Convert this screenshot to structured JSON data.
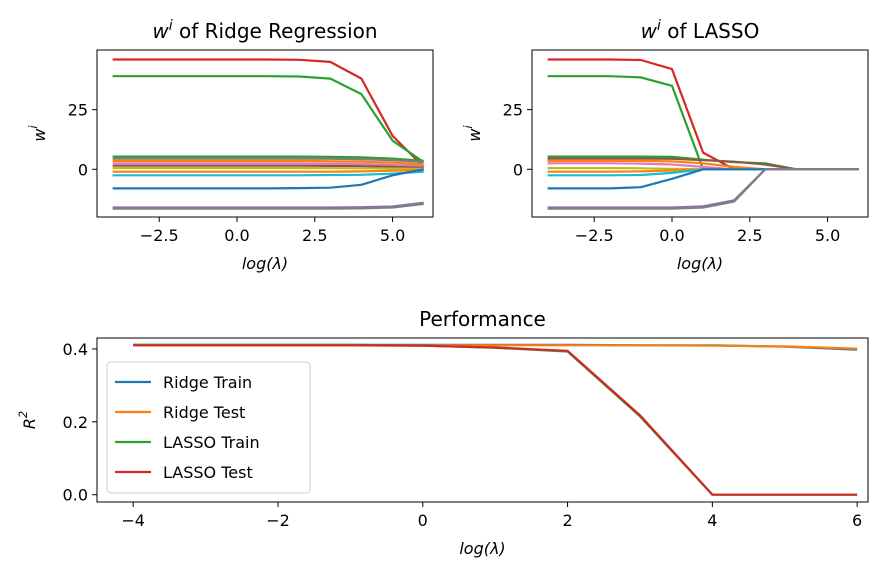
{
  "figure": {
    "colors": {
      "blue": "#1f77b4",
      "orange": "#ff7f0e",
      "green": "#2ca02c",
      "red": "#d62728",
      "purple": "#9467bd",
      "brown": "#8c564b",
      "pink": "#e377c2",
      "gray": "#7f7f7f",
      "olive": "#bcbd22",
      "cyan": "#17becf"
    }
  },
  "chart_data": [
    {
      "type": "line",
      "title": "w^i of Ridge Regression",
      "xlabel": "log(λ)",
      "ylabel": "w^i",
      "xlim": [
        -4.5,
        6.3
      ],
      "ylim": [
        -20,
        50
      ],
      "xticks": [
        -2.5,
        0.0,
        2.5,
        5.0
      ],
      "xtick_labels": [
        "−2.5",
        "0.0",
        "2.5",
        "5.0"
      ],
      "yticks": [
        0,
        25
      ],
      "ytick_labels": [
        "0",
        "25"
      ],
      "x": [
        -4,
        -3,
        -2,
        -1,
        0,
        1,
        2,
        3,
        4,
        5,
        6
      ],
      "series": [
        {
          "color": "#d62728",
          "values": [
            46,
            46,
            46,
            46,
            46,
            46,
            45.9,
            45,
            38,
            14,
            1
          ]
        },
        {
          "color": "#2ca02c",
          "values": [
            39,
            39,
            39,
            39,
            39,
            39,
            38.9,
            38,
            31.5,
            12,
            3
          ]
        },
        {
          "color": "#2ca02c",
          "values": [
            5.3,
            5.3,
            5.3,
            5.3,
            5.3,
            5.3,
            5.3,
            5.2,
            5.0,
            4.5,
            3.5
          ]
        },
        {
          "color": "#7f7f7f",
          "values": [
            4.5,
            4.5,
            4.5,
            4.5,
            4.5,
            4.5,
            4.5,
            4.4,
            4.2,
            3.8,
            3.0
          ]
        },
        {
          "color": "#ff7f0e",
          "values": [
            3.5,
            3.5,
            3.5,
            3.5,
            3.5,
            3.5,
            3.5,
            3.4,
            3.2,
            2.8,
            2.0
          ]
        },
        {
          "color": "#e377c2",
          "values": [
            2.5,
            2.5,
            2.5,
            2.5,
            2.5,
            2.5,
            2.5,
            2.4,
            2.2,
            1.8,
            1.2
          ]
        },
        {
          "color": "#8c564b",
          "values": [
            1.5,
            1.5,
            1.5,
            1.5,
            1.5,
            1.5,
            1.5,
            1.4,
            1.3,
            1.0,
            0.6
          ]
        },
        {
          "color": "#bcbd22",
          "values": [
            0.5,
            0.5,
            0.5,
            0.5,
            0.5,
            0.5,
            0.5,
            0.5,
            0.4,
            0.3,
            0.2
          ]
        },
        {
          "color": "#ff7f0e",
          "values": [
            -1.0,
            -1.0,
            -1.0,
            -1.0,
            -1.0,
            -1.0,
            -1.0,
            -1.0,
            -0.9,
            -0.6,
            -0.3
          ]
        },
        {
          "color": "#17becf",
          "values": [
            -2.5,
            -2.5,
            -2.5,
            -2.5,
            -2.5,
            -2.5,
            -2.5,
            -2.4,
            -2.3,
            -1.8,
            -1.0
          ]
        },
        {
          "color": "#1f77b4",
          "values": [
            -8.0,
            -8.0,
            -8.0,
            -8.0,
            -8.0,
            -8.0,
            -7.9,
            -7.7,
            -6.5,
            -2.5,
            0.0
          ]
        },
        {
          "color": "#9467bd",
          "values": [
            -16.0,
            -16.0,
            -16.0,
            -16.0,
            -16.0,
            -16.0,
            -16.0,
            -16.0,
            -15.9,
            -15.6,
            -14.0
          ]
        },
        {
          "color": "#7f7f7f",
          "values": [
            -16.5,
            -16.5,
            -16.5,
            -16.5,
            -16.5,
            -16.5,
            -16.5,
            -16.5,
            -16.4,
            -16.0,
            -14.5
          ]
        }
      ]
    },
    {
      "type": "line",
      "title": "w^i of LASSO",
      "xlabel": "log(λ)",
      "ylabel": "w^i",
      "xlim": [
        -4.5,
        6.3
      ],
      "ylim": [
        -20,
        50
      ],
      "xticks": [
        -2.5,
        0.0,
        2.5,
        5.0
      ],
      "xtick_labels": [
        "−2.5",
        "0.0",
        "2.5",
        "5.0"
      ],
      "yticks": [
        0,
        25
      ],
      "ytick_labels": [
        "0",
        "25"
      ],
      "x": [
        -4,
        -3,
        -2,
        -1,
        0,
        1,
        2,
        3,
        4,
        5,
        6
      ],
      "series": [
        {
          "color": "#d62728",
          "values": [
            46,
            46,
            46,
            45.8,
            42,
            7,
            0,
            0,
            0,
            0,
            0
          ]
        },
        {
          "color": "#2ca02c",
          "values": [
            39,
            39,
            39,
            38.5,
            35,
            0,
            0,
            0,
            0,
            0,
            0
          ]
        },
        {
          "color": "#2ca02c",
          "values": [
            5.3,
            5.3,
            5.3,
            5.3,
            5.2,
            4.0,
            3.0,
            2.5,
            0,
            0,
            0
          ]
        },
        {
          "color": "#8c564b",
          "values": [
            4.5,
            4.5,
            4.5,
            4.5,
            4.4,
            3.8,
            3.2,
            2.0,
            0,
            0,
            0
          ]
        },
        {
          "color": "#ff7f0e",
          "values": [
            3.5,
            3.5,
            3.5,
            3.5,
            3.3,
            2.5,
            1.0,
            0,
            0,
            0,
            0
          ]
        },
        {
          "color": "#e377c2",
          "values": [
            2.5,
            2.5,
            2.5,
            2.4,
            2.0,
            1.0,
            0,
            0,
            0,
            0,
            0
          ]
        },
        {
          "color": "#bcbd22",
          "values": [
            0.5,
            0.5,
            0.5,
            0.4,
            0.2,
            0,
            0,
            0,
            0,
            0,
            0
          ]
        },
        {
          "color": "#ff7f0e",
          "values": [
            -1.0,
            -1.0,
            -1.0,
            -0.9,
            -0.5,
            0,
            0,
            0,
            0,
            0,
            0
          ]
        },
        {
          "color": "#17becf",
          "values": [
            -2.5,
            -2.5,
            -2.5,
            -2.4,
            -1.5,
            0,
            0,
            0,
            0,
            0,
            0
          ]
        },
        {
          "color": "#1f77b4",
          "values": [
            -8.0,
            -8.0,
            -8.0,
            -7.5,
            -4.0,
            0,
            0,
            0,
            0,
            0,
            0
          ]
        },
        {
          "color": "#9467bd",
          "values": [
            -16.0,
            -16.0,
            -16.0,
            -16.0,
            -16.0,
            -15.5,
            -13,
            0,
            0,
            0,
            0
          ]
        },
        {
          "color": "#7f7f7f",
          "values": [
            -16.5,
            -16.5,
            -16.5,
            -16.5,
            -16.5,
            -16.0,
            -13.5,
            0,
            0,
            0,
            0
          ]
        }
      ]
    },
    {
      "type": "line",
      "title": "Performance",
      "xlabel": "log(λ)",
      "ylabel": "R^2",
      "xlim": [
        -4.5,
        6.15
      ],
      "ylim": [
        -0.02,
        0.43
      ],
      "xticks": [
        -4,
        -2,
        0,
        2,
        4,
        6
      ],
      "xtick_labels": [
        "−4",
        "−2",
        "0",
        "2",
        "4",
        "6"
      ],
      "yticks": [
        0.0,
        0.2,
        0.4
      ],
      "ytick_labels": [
        "0.0",
        "0.2",
        "0.4"
      ],
      "legend": "upper-left",
      "x": [
        -4,
        -3,
        -2,
        -1,
        0,
        1,
        2,
        3,
        4,
        5,
        6
      ],
      "series": [
        {
          "name": "Ridge Train",
          "color": "#1f77b4",
          "values": [
            0.411,
            0.411,
            0.411,
            0.411,
            0.411,
            0.411,
            0.411,
            0.41,
            0.41,
            0.406,
            0.398
          ]
        },
        {
          "name": "Ridge Test",
          "color": "#ff7f0e",
          "values": [
            0.41,
            0.41,
            0.41,
            0.41,
            0.41,
            0.41,
            0.41,
            0.41,
            0.409,
            0.407,
            0.401
          ]
        },
        {
          "name": "LASSO Train",
          "color": "#2ca02c",
          "values": [
            0.411,
            0.411,
            0.411,
            0.411,
            0.409,
            0.403,
            0.393,
            0.215,
            0.0,
            0.0,
            0.0
          ]
        },
        {
          "name": "LASSO Test",
          "color": "#d62728",
          "values": [
            0.41,
            0.41,
            0.41,
            0.41,
            0.409,
            0.404,
            0.395,
            0.218,
            0.0,
            0.0,
            0.0
          ]
        }
      ]
    }
  ]
}
